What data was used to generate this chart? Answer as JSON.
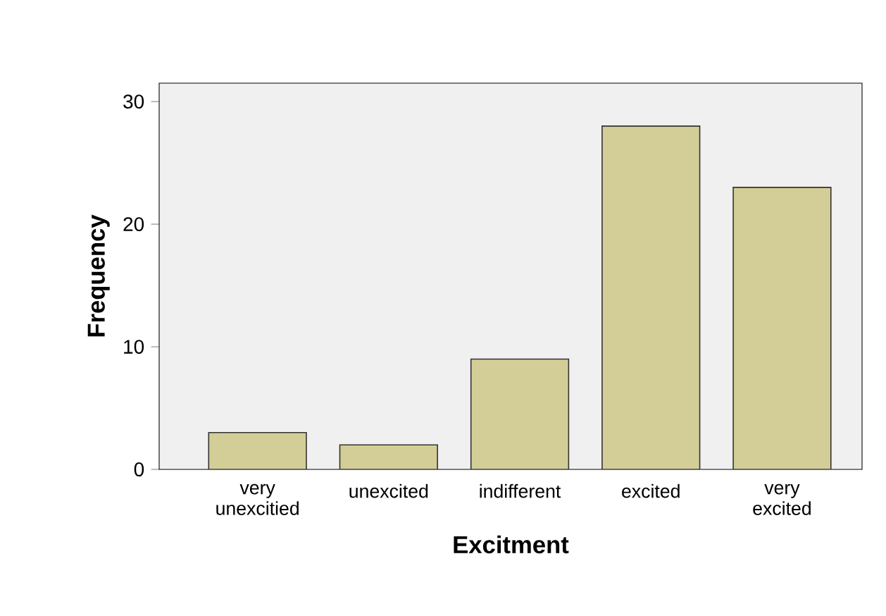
{
  "chart_data": {
    "type": "bar",
    "xlabel": "Excitment",
    "ylabel": "Frequency",
    "categories": [
      "very unexcitied",
      "unexcited",
      "indifferent",
      "excited",
      "very excited"
    ],
    "values": [
      3,
      2,
      9,
      28,
      23
    ],
    "color": "#d3ce97",
    "ylim": [
      0,
      31.5
    ],
    "yticks": [
      0,
      10,
      20,
      30
    ],
    "grid": false
  }
}
